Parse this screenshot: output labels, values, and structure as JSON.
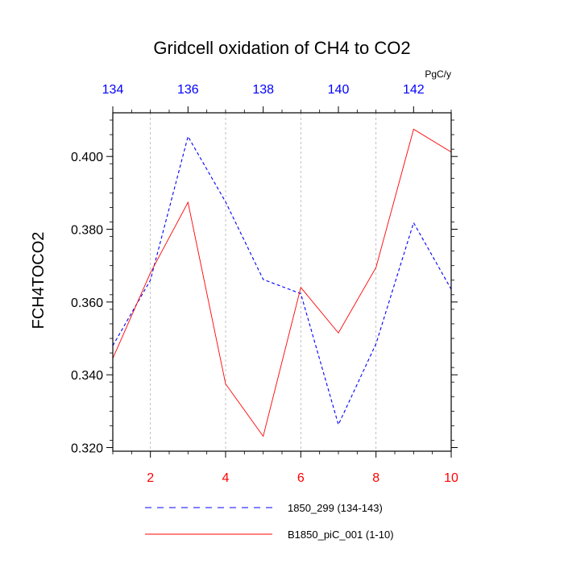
{
  "chart_data": {
    "type": "line",
    "title": "Gridcell oxidation of CH4 to CO2",
    "ylabel": "FCH4TOCO2",
    "top_axis_units": "PgC/y",
    "xlim_bottom": [
      1,
      10
    ],
    "xlim_top": [
      134,
      143
    ],
    "ylim": [
      0.319,
      0.412
    ],
    "yticks": [
      0.32,
      0.34,
      0.36,
      0.38,
      0.4
    ],
    "ytick_labels": [
      "0.320",
      "0.340",
      "0.360",
      "0.380",
      "0.400"
    ],
    "xticks_bottom": [
      2,
      4,
      6,
      8,
      10
    ],
    "xtick_labels_bottom": [
      "2",
      "4",
      "6",
      "8",
      "10"
    ],
    "xticks_top": [
      134,
      136,
      138,
      140,
      142
    ],
    "xtick_labels_top": [
      "134",
      "136",
      "138",
      "140",
      "142"
    ],
    "grid": "vertical dashed at major bottom ticks",
    "series": [
      {
        "name": "1850_299 (134-143)",
        "color": "#0000ff",
        "dash": "dashed",
        "axis": "top",
        "x": [
          134,
          135,
          136,
          137,
          138,
          139,
          140,
          141,
          142,
          143
        ],
        "values": [
          0.348,
          0.366,
          0.4055,
          0.3875,
          0.3662,
          0.3623,
          0.3263,
          0.3485,
          0.3818,
          0.3635
        ]
      },
      {
        "name": "B1850_piC_001 (1-10)",
        "color": "#ff0000",
        "dash": "solid",
        "axis": "bottom",
        "x": [
          1,
          2,
          3,
          4,
          5,
          6,
          7,
          8,
          9,
          10
        ],
        "values": [
          0.3445,
          0.368,
          0.3874,
          0.3375,
          0.3231,
          0.364,
          0.3515,
          0.3695,
          0.4075,
          0.4012
        ]
      }
    ],
    "legend": {
      "placement": "bottom",
      "entries": [
        "1850_299 (134-143)",
        "B1850_piC_001 (1-10)"
      ]
    }
  }
}
